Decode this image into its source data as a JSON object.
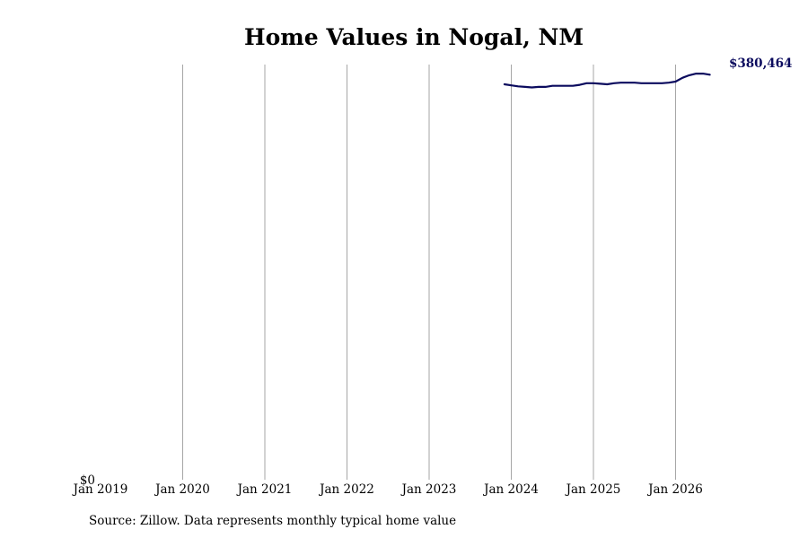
{
  "chart_data": {
    "type": "line",
    "title": "Home Values in Nogal, NM",
    "xlabel": "",
    "ylabel": "",
    "x_ticks": [
      "Jan 2019",
      "Jan 2020",
      "Jan 2021",
      "Jan 2022",
      "Jan 2023",
      "Jan 2024",
      "Jan 2025",
      "Jan 2026"
    ],
    "y_tick_label": "$0",
    "ylim": [
      0,
      390000
    ],
    "grid": "vertical",
    "line_color": "#0b0b5e",
    "series": [
      {
        "x": [
          "2023-12",
          "2024-01",
          "2024-02",
          "2024-03",
          "2024-04",
          "2024-05",
          "2024-06",
          "2024-07",
          "2024-08",
          "2024-09",
          "2024-10",
          "2024-11",
          "2024-12",
          "2025-01",
          "2025-02",
          "2025-03",
          "2025-04",
          "2025-05",
          "2025-06",
          "2025-07",
          "2025-08",
          "2025-09",
          "2025-10",
          "2025-11",
          "2025-12",
          "2026-01",
          "2026-02",
          "2026-03",
          "2026-04",
          "2026-05",
          "2026-06"
        ],
        "values": [
          371500,
          370500,
          369500,
          369000,
          368500,
          369000,
          369000,
          370000,
          370000,
          370000,
          370000,
          371000,
          372500,
          372500,
          372000,
          371500,
          372500,
          373000,
          373000,
          373000,
          372500,
          372500,
          372500,
          372500,
          373000,
          374000,
          377500,
          380000,
          381500,
          381500,
          380464
        ]
      }
    ],
    "end_label": "$380,464"
  },
  "footer": {
    "source": "Source: Zillow. Data represents monthly typical home value"
  }
}
